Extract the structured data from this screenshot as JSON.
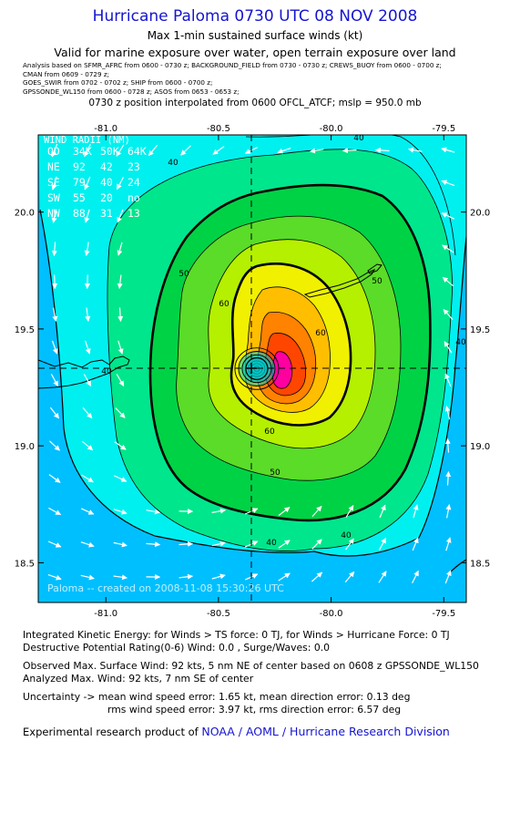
{
  "header": {
    "title": "Hurricane Paloma 0730 UTC 08 NOV 2008",
    "subtitle": "Max 1-min sustained surface winds (kt)",
    "valid": "Valid for marine exposure over water, open terrain exposure over land",
    "analysis_lines": [
      "Analysis based on  SFMR_AFRC from 0600 - 0730 z;  BACKGROUND_FIELD from 0730 - 0730 z;  CREWS_BUOY from 0600 - 0700 z;",
      "CMAN from 0609 - 0729 z;",
      "GOES_SWIR from 0702 - 0702 z;  SHIP from 0600 - 0700 z;",
      "GPSSONDE_WL150 from 0600 - 0728 z;  ASOS from 0653 - 0653 z;"
    ],
    "position": "0730 z position interpolated from 0600 OFCL_ATCF; mslp = 950.0 mb"
  },
  "chart_data": {
    "type": "contour",
    "x_ticks": [
      "-81.0",
      "-80.5",
      "-80.0",
      "-79.5"
    ],
    "y_ticks": [
      "20.0",
      "19.5",
      "19.0",
      "18.5"
    ],
    "xlim": [
      -81.3,
      -79.4
    ],
    "ylim": [
      18.33,
      20.33
    ],
    "center": {
      "lon": -80.33,
      "lat": 19.33
    },
    "contour_labels": [
      "40",
      "40",
      "40",
      "40",
      "40",
      "40",
      "50",
      "50",
      "50",
      "60",
      "60",
      "60"
    ],
    "colors": {
      "ocean_bg": "#00bfff",
      "level_40": "#00f0f0",
      "level_45": "#00e68c",
      "level_50": "#00d246",
      "level_55": "#5adc28",
      "level_60": "#b4f000",
      "level_65": "#f0f000",
      "level_70": "#ffbe00",
      "level_75": "#ff8200",
      "level_80": "#ff4600",
      "level_90": "#ff00a0"
    },
    "wind_radii": {
      "title": "WIND RADII (NM)",
      "header": [
        "QD",
        "34K",
        "50K",
        "64K"
      ],
      "rows": [
        [
          "NE",
          "92",
          "42",
          "23"
        ],
        [
          "SE",
          "79",
          "40",
          "24"
        ],
        [
          "SW",
          "55",
          "20",
          "no"
        ],
        [
          "NW",
          "88",
          "31",
          "13"
        ]
      ]
    },
    "watermark": "Paloma -- created on 2008-11-08 15:30:26 UTC"
  },
  "info": {
    "ike": "Integrated Kinetic Energy:  for Winds > TS force: 0 TJ,  for Winds > Hurricane Force: 0 TJ",
    "dpr": "Destructive Potential Rating(0-6)   Wind: 0.0 , Surge/Waves: 0.0",
    "observed": "Observed Max. Surface Wind: 92 kts, 5 nm NE of center based on 0608 z GPSSONDE_WL150",
    "analyzed": "Analyzed Max. Wind: 92 kts, 7 nm SE of center",
    "uncertainty1": "Uncertainty -> mean wind speed error: 1.65 kt,   mean direction error: 0.13 deg",
    "uncertainty2": "rms wind speed error: 3.97 kt,   rms direction error: 6.57 deg",
    "credit_prefix": "Experimental research product of ",
    "credit_org": "NOAA / AOML / Hurricane Research Division"
  }
}
